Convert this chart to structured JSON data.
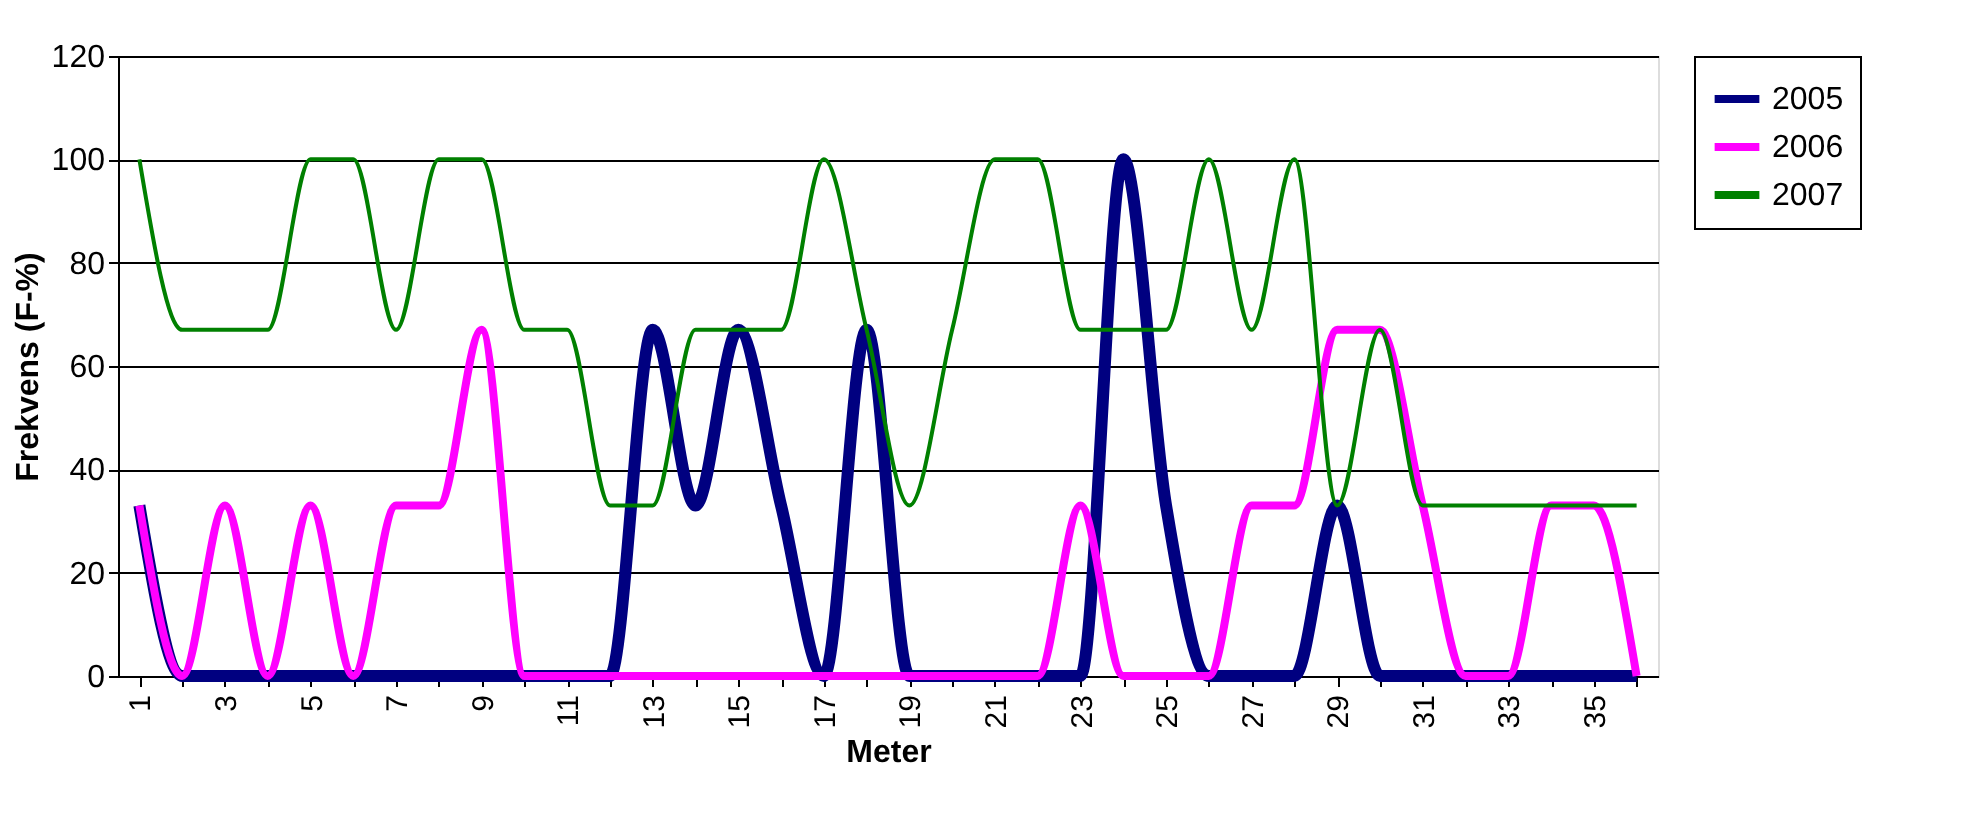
{
  "chart_data": {
    "type": "line",
    "xlabel": "Meter",
    "ylabel": "Frekvens (F-%)",
    "categories": [
      "1",
      null,
      "3",
      null,
      "5",
      null,
      "7",
      null,
      "9",
      null,
      "11",
      null,
      "13",
      null,
      "15",
      null,
      "17",
      null,
      "19",
      null,
      "21",
      null,
      "23",
      null,
      "25",
      null,
      "27",
      null,
      "29",
      null,
      "31",
      null,
      "33",
      null,
      "35",
      null
    ],
    "series": [
      {
        "name": "2005",
        "color": "#000080",
        "values": [
          33,
          0,
          0,
          0,
          0,
          0,
          0,
          0,
          0,
          0,
          0,
          0,
          67,
          33,
          67,
          33,
          0,
          67,
          0,
          0,
          0,
          0,
          0,
          100,
          33,
          0,
          0,
          0,
          33,
          0,
          0,
          0,
          0,
          0,
          0,
          0
        ]
      },
      {
        "name": "2006",
        "color": "#ff00ff",
        "values": [
          33,
          0,
          33,
          0,
          33,
          0,
          33,
          33,
          67,
          0,
          0,
          0,
          0,
          0,
          0,
          0,
          0,
          0,
          0,
          0,
          0,
          0,
          33,
          0,
          0,
          0,
          33,
          33,
          67,
          67,
          33,
          0,
          0,
          33,
          33,
          0
        ]
      },
      {
        "name": "2007",
        "color": "#008000",
        "values": [
          100,
          67,
          67,
          67,
          100,
          100,
          67,
          100,
          100,
          67,
          67,
          33,
          33,
          67,
          67,
          67,
          100,
          67,
          33,
          67,
          100,
          100,
          67,
          67,
          67,
          100,
          67,
          100,
          33,
          67,
          33,
          33,
          33,
          33,
          33,
          33
        ]
      }
    ],
    "ylim": [
      0,
      120
    ],
    "yticks": [
      0,
      20,
      40,
      60,
      80,
      100,
      120
    ],
    "grid": "y",
    "legend": "right",
    "marker": "none",
    "line_style": "solid"
  }
}
